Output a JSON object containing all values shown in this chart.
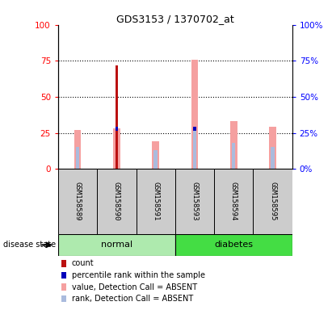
{
  "title": "GDS3153 / 1370702_at",
  "samples": [
    "GSM158589",
    "GSM158590",
    "GSM158591",
    "GSM158593",
    "GSM158594",
    "GSM158595"
  ],
  "groups": [
    "normal",
    "normal",
    "normal",
    "diabetes",
    "diabetes",
    "diabetes"
  ],
  "normal_color": "#AEEAAE",
  "diabetes_color": "#44DD44",
  "bar_color_red": "#BB1111",
  "bar_color_blue": "#0000BB",
  "bar_color_pink": "#F5A0A0",
  "bar_color_lavender": "#AABBDD",
  "ylim": [
    0,
    100
  ],
  "yticks": [
    0,
    25,
    50,
    75,
    100
  ],
  "count_values": [
    0,
    72,
    0,
    0,
    0,
    0
  ],
  "percentile_values": [
    0,
    28,
    0,
    28,
    0,
    0
  ],
  "pink_value_heights": [
    27,
    28,
    19,
    76,
    33,
    29
  ],
  "lavender_heights": [
    15,
    0,
    13,
    28,
    18,
    15
  ],
  "legend_items": [
    {
      "color": "#BB1111",
      "label": "count"
    },
    {
      "color": "#0000BB",
      "label": "percentile rank within the sample"
    },
    {
      "color": "#F5A0A0",
      "label": "value, Detection Call = ABSENT"
    },
    {
      "color": "#AABBDD",
      "label": "rank, Detection Call = ABSENT"
    }
  ]
}
